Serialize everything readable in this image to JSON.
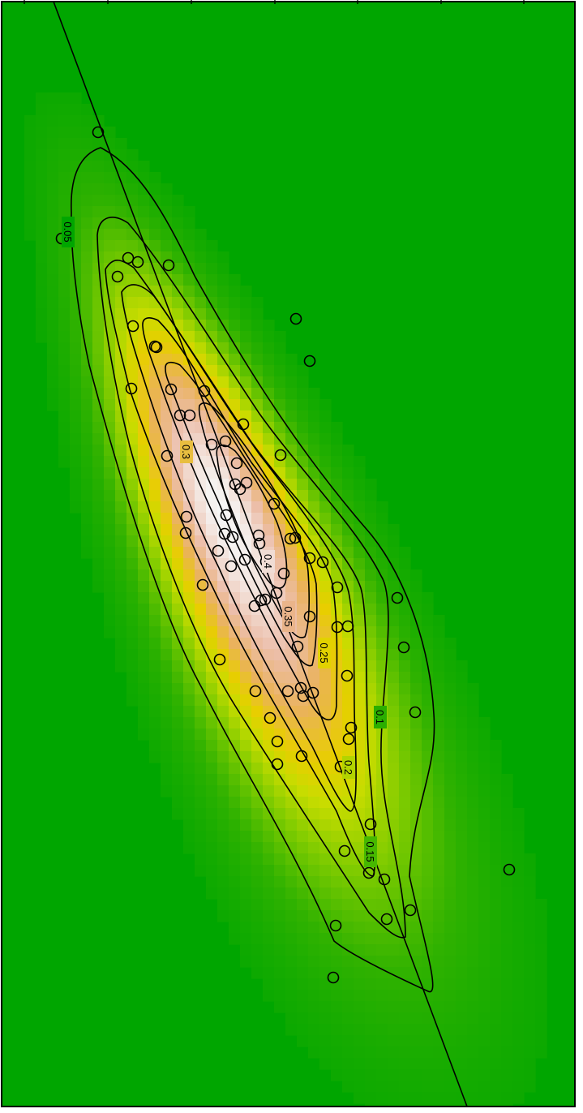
{
  "chart_data": {
    "type": "heatmap",
    "title": "",
    "xlabel": "",
    "ylabel": "",
    "overlay": [
      "density-heatmap",
      "contour-lines",
      "scatter-points",
      "regression-line"
    ],
    "colors": {
      "background": "#00a600",
      "low": "#00a600",
      "mid": "#e6e600",
      "high": "#f2f2f2",
      "frame": "#000000"
    },
    "contour_levels": [
      "0.05",
      "0.1",
      "0.15",
      "0.2",
      "0.25",
      "0.3",
      "0.35",
      "0.4"
    ],
    "points": [
      [
        121,
        163
      ],
      [
        76,
        294
      ],
      [
        158,
        318
      ],
      [
        170,
        323
      ],
      [
        208,
        327
      ],
      [
        145,
        341
      ],
      [
        365,
        393
      ],
      [
        164,
        402
      ],
      [
        191,
        427
      ],
      [
        193,
        428
      ],
      [
        382,
        445
      ],
      [
        162,
        479
      ],
      [
        211,
        480
      ],
      [
        252,
        482
      ],
      [
        222,
        512
      ],
      [
        234,
        512
      ],
      [
        300,
        523
      ],
      [
        278,
        544
      ],
      [
        261,
        548
      ],
      [
        346,
        561
      ],
      [
        206,
        562
      ],
      [
        292,
        571
      ],
      [
        290,
        597
      ],
      [
        304,
        595
      ],
      [
        296,
        603
      ],
      [
        338,
        621
      ],
      [
        279,
        635
      ],
      [
        230,
        637
      ],
      [
        358,
        664
      ],
      [
        364,
        663
      ],
      [
        229,
        657
      ],
      [
        287,
        662
      ],
      [
        277,
        658
      ],
      [
        319,
        660
      ],
      [
        320,
        670
      ],
      [
        328,
        692
      ],
      [
        269,
        679
      ],
      [
        302,
        690
      ],
      [
        382,
        688
      ],
      [
        398,
        693
      ],
      [
        350,
        707
      ],
      [
        285,
        698
      ],
      [
        250,
        721
      ],
      [
        416,
        724
      ],
      [
        341,
        731
      ],
      [
        322,
        740
      ],
      [
        327,
        739
      ],
      [
        314,
        747
      ],
      [
        490,
        737
      ],
      [
        382,
        760
      ],
      [
        416,
        773
      ],
      [
        429,
        772
      ],
      [
        498,
        798
      ],
      [
        367,
        797
      ],
      [
        271,
        813
      ],
      [
        428,
        833
      ],
      [
        315,
        852
      ],
      [
        355,
        852
      ],
      [
        371,
        848
      ],
      [
        374,
        858
      ],
      [
        386,
        854
      ],
      [
        512,
        878
      ],
      [
        333,
        885
      ],
      [
        433,
        897
      ],
      [
        342,
        914
      ],
      [
        430,
        911
      ],
      [
        372,
        932
      ],
      [
        342,
        942
      ],
      [
        420,
        945
      ],
      [
        457,
        1016
      ],
      [
        425,
        1049
      ],
      [
        455,
        1076
      ],
      [
        474,
        1084
      ],
      [
        628,
        1072
      ],
      [
        506,
        1122
      ],
      [
        477,
        1133
      ],
      [
        414,
        1141
      ],
      [
        411,
        1205
      ]
    ]
  }
}
